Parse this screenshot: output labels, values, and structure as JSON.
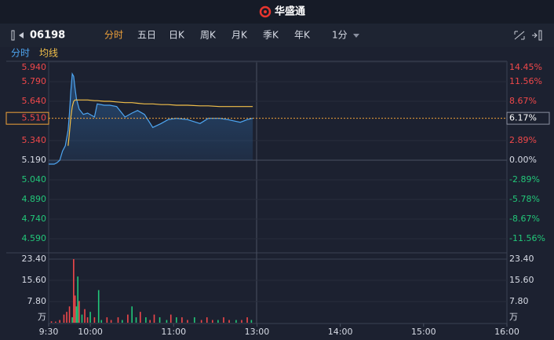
{
  "app": {
    "brand": "华盛通",
    "symbol": "06198",
    "tabs": [
      "分时",
      "五日",
      "日K",
      "周K",
      "月K",
      "季K",
      "年K"
    ],
    "interval": "1分"
  },
  "chart_data": [
    {
      "type": "line",
      "xlim": [
        0,
        330
      ],
      "x": [
        0,
        2,
        4,
        6,
        8,
        10,
        12,
        14,
        15,
        16,
        17,
        18,
        19,
        20,
        22,
        25,
        28,
        33,
        35,
        40,
        44,
        49,
        55,
        60,
        64,
        69,
        75,
        81,
        86,
        92,
        100,
        109,
        115,
        123,
        129,
        138,
        143,
        147
      ],
      "series": [
        {
          "name": "分时",
          "color": "#4ea6f2",
          "values": [
            5.16,
            5.16,
            5.16,
            5.17,
            5.19,
            5.26,
            5.3,
            5.42,
            5.55,
            5.72,
            5.85,
            5.83,
            5.74,
            5.66,
            5.58,
            5.54,
            5.55,
            5.52,
            5.62,
            5.61,
            5.61,
            5.6,
            5.52,
            5.55,
            5.57,
            5.54,
            5.44,
            5.47,
            5.5,
            5.51,
            5.5,
            5.47,
            5.51,
            5.51,
            5.5,
            5.48,
            5.5,
            5.51
          ]
        },
        {
          "name": "均线",
          "color": "#f2c04a",
          "values": [
            null,
            null,
            null,
            null,
            null,
            null,
            null,
            5.3,
            5.4,
            5.52,
            5.6,
            5.64,
            5.65,
            5.65,
            5.65,
            5.65,
            5.65,
            5.645,
            5.645,
            5.64,
            5.64,
            5.635,
            5.63,
            5.63,
            5.625,
            5.62,
            5.62,
            5.615,
            5.615,
            5.61,
            5.61,
            5.605,
            5.605,
            5.6,
            5.6,
            5.6,
            5.6,
            5.6
          ]
        }
      ],
      "ylim": [
        4.59,
        5.94
      ],
      "yticks": [
        {
          "value": 5.94,
          "label": "5.940"
        },
        {
          "value": 5.79,
          "label": "5.790"
        },
        {
          "value": 5.64,
          "label": "5.640"
        },
        {
          "value": 5.34,
          "label": "5.340"
        },
        {
          "value": 5.19,
          "label": "5.190"
        },
        {
          "value": 5.04,
          "label": "5.040"
        },
        {
          "value": 4.89,
          "label": "4.890"
        },
        {
          "value": 4.74,
          "label": "4.740"
        },
        {
          "value": 4.59,
          "label": "4.590"
        }
      ],
      "y2lim": [
        -11.56,
        14.45
      ],
      "y2ticks": [
        {
          "value": 14.45,
          "label": "14.45%"
        },
        {
          "value": 11.56,
          "label": "11.56%"
        },
        {
          "value": 8.67,
          "label": "8.67%"
        },
        {
          "value": 2.89,
          "label": "2.89%"
        },
        {
          "value": 0,
          "label": "0.00%"
        },
        {
          "value": -2.89,
          "label": "-2.89%"
        },
        {
          "value": -5.78,
          "label": "-5.78%"
        },
        {
          "value": -8.67,
          "label": "-8.67%"
        },
        {
          "value": -11.56,
          "label": "-11.56%"
        }
      ],
      "last_price": {
        "value": 5.51,
        "label": "5.510"
      },
      "last_change": {
        "value": 6.17,
        "label": "6.17%"
      },
      "up_color": "#f0484a",
      "down_color": "#22c779",
      "flat_color": "#d8dce6"
    },
    {
      "type": "bar",
      "xlim": [
        0,
        330
      ],
      "xticks": [
        {
          "value": 0,
          "label": "9:30"
        },
        {
          "value": 30,
          "label": "10:00"
        },
        {
          "value": 90,
          "label": "11:00"
        },
        {
          "value": 150,
          "label": "13:00"
        },
        {
          "value": 210,
          "label": "14:00"
        },
        {
          "value": 270,
          "label": "15:00"
        },
        {
          "value": 330,
          "label": "16:00"
        }
      ],
      "x": [
        2,
        5,
        8,
        11,
        13,
        15,
        17,
        18,
        19,
        20,
        21,
        22,
        24,
        26,
        28,
        30,
        33,
        36,
        38,
        42,
        45,
        50,
        53,
        57,
        60,
        63,
        66,
        70,
        73,
        76,
        80,
        85,
        88,
        92,
        96,
        100,
        105,
        110,
        114,
        118,
        122,
        126,
        130,
        135,
        139,
        143,
        146
      ],
      "values": [
        0.5,
        0.4,
        1,
        3,
        4,
        6,
        2,
        23.4,
        10,
        6,
        17,
        8,
        3,
        5,
        2,
        4,
        2,
        12,
        1,
        2,
        1,
        2,
        1,
        3,
        6,
        2,
        4,
        2,
        1,
        3,
        2,
        1,
        3,
        2,
        2,
        1,
        2,
        1,
        2,
        1,
        1,
        2,
        1,
        1,
        1,
        2,
        1
      ],
      "colors": [
        "#f0484a",
        "#f0484a",
        "#f0484a",
        "#f0484a",
        "#f0484a",
        "#f0484a",
        "#22c779",
        "#f0484a",
        "#f0484a",
        "#22c779",
        "#22c779",
        "#f0484a",
        "#22c779",
        "#f0484a",
        "#f0484a",
        "#22c779",
        "#f0484a",
        "#22c779",
        "#22c779",
        "#f0484a",
        "#f0484a",
        "#f0484a",
        "#22c779",
        "#f0484a",
        "#22c779",
        "#22c779",
        "#f0484a",
        "#22c779",
        "#f0484a",
        "#f0484a",
        "#22c779",
        "#22c779",
        "#f0484a",
        "#22c779",
        "#f0484a",
        "#f0484a",
        "#22c779",
        "#f0484a",
        "#f0484a",
        "#f0484a",
        "#22c779",
        "#f0484a",
        "#f0484a",
        "#22c779",
        "#f0484a",
        "#f0484a",
        "#22c779"
      ],
      "ylim": [
        0,
        23.4
      ],
      "yticks": [
        {
          "value": 23.4,
          "label": "23.40"
        },
        {
          "value": 15.6,
          "label": "15.60"
        },
        {
          "value": 7.8,
          "label": "7.80"
        }
      ],
      "y_unit": "万"
    }
  ]
}
